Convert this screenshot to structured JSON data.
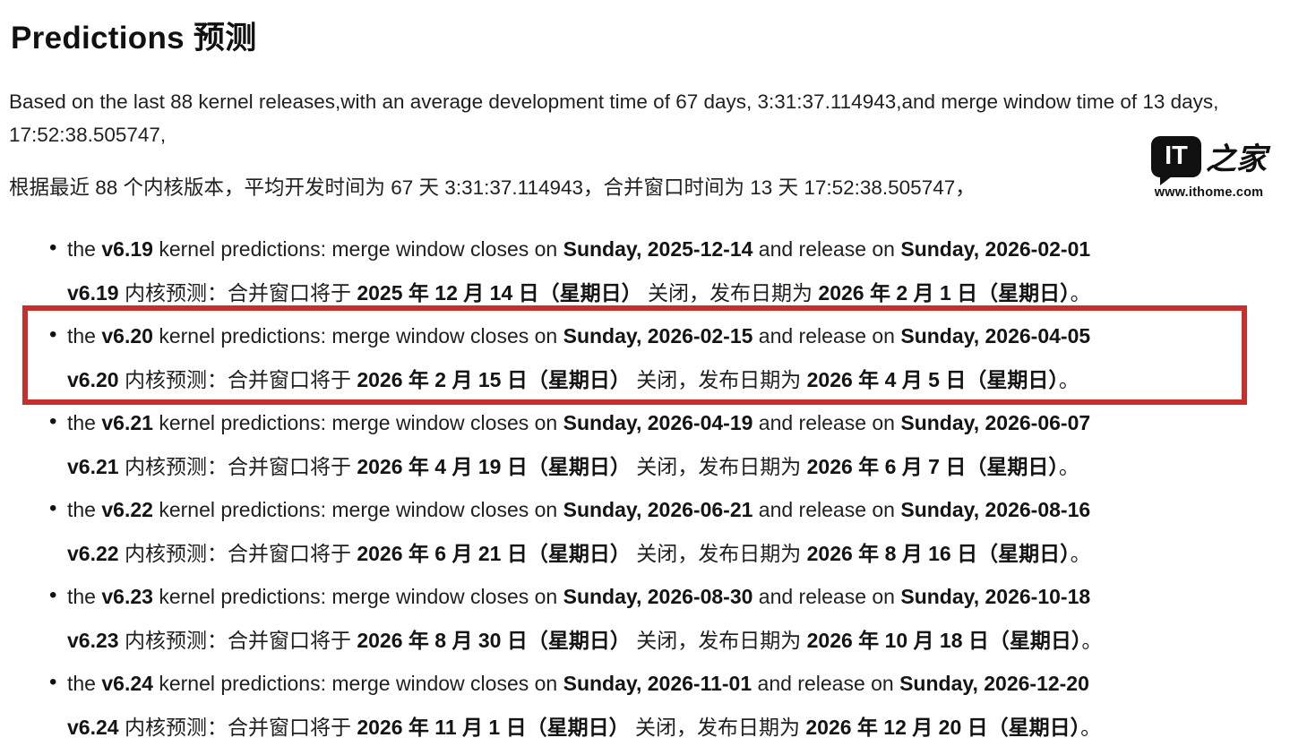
{
  "header": {
    "title": "Predictions 预测"
  },
  "intro": {
    "english": "Based on the last 88 kernel releases,with an average development time of 67 days, 3:31:37.114943,and merge window time of 13 days, 17:52:38.505747,",
    "chinese": "根据最近 88 个内核版本，平均开发时间为 67 天 3:31:37.114943，合并窗口时间为 13 天 17:52:38.505747，"
  },
  "watermark": {
    "logo_it": "IT",
    "logo_zh": "之家",
    "url": "www.ithome.com"
  },
  "labels": {
    "en_prefix": "the ",
    "en_mid1": " kernel predictions: merge window closes on ",
    "en_mid2": " and release on ",
    "zh_mid1": " 内核预测：合并窗口将于 ",
    "zh_mid2": " 关闭，发布日期为 ",
    "zh_suffix": "。"
  },
  "highlight": {
    "box_color": "#c4302b",
    "highlighted_version": "v6.20"
  },
  "predictions": [
    {
      "version": "v6.19",
      "highlighted": false,
      "en_close": "Sunday, 2025-12-14",
      "en_release": "Sunday, 2026-02-01",
      "zh_close": "2025 年 12 月 14 日（星期日）",
      "zh_release": "2026 年 2 月 1 日（星期日）"
    },
    {
      "version": "v6.20",
      "highlighted": true,
      "en_close": "Sunday, 2026-02-15",
      "en_release": "Sunday, 2026-04-05",
      "zh_close": "2026 年 2 月 15 日（星期日）",
      "zh_release": "2026 年 4 月 5 日（星期日）"
    },
    {
      "version": "v6.21",
      "highlighted": false,
      "en_close": "Sunday, 2026-04-19",
      "en_release": "Sunday, 2026-06-07",
      "zh_close": "2026 年 4 月 19 日（星期日）",
      "zh_release": "2026 年 6 月 7 日（星期日）"
    },
    {
      "version": "v6.22",
      "highlighted": false,
      "en_close": "Sunday, 2026-06-21",
      "en_release": "Sunday, 2026-08-16",
      "zh_close": "2026 年 6 月 21 日（星期日）",
      "zh_release": "2026 年 8 月 16 日（星期日）"
    },
    {
      "version": "v6.23",
      "highlighted": false,
      "en_close": "Sunday, 2026-08-30",
      "en_release": "Sunday, 2026-10-18",
      "zh_close": "2026 年 8 月 30 日（星期日）",
      "zh_release": "2026 年 10 月 18 日（星期日）"
    },
    {
      "version": "v6.24",
      "highlighted": false,
      "en_close": "Sunday, 2026-11-01",
      "en_release": "Sunday, 2026-12-20",
      "zh_close": "2026 年 11 月 1 日（星期日）",
      "zh_release": "2026 年 12 月 20 日（星期日）"
    }
  ]
}
